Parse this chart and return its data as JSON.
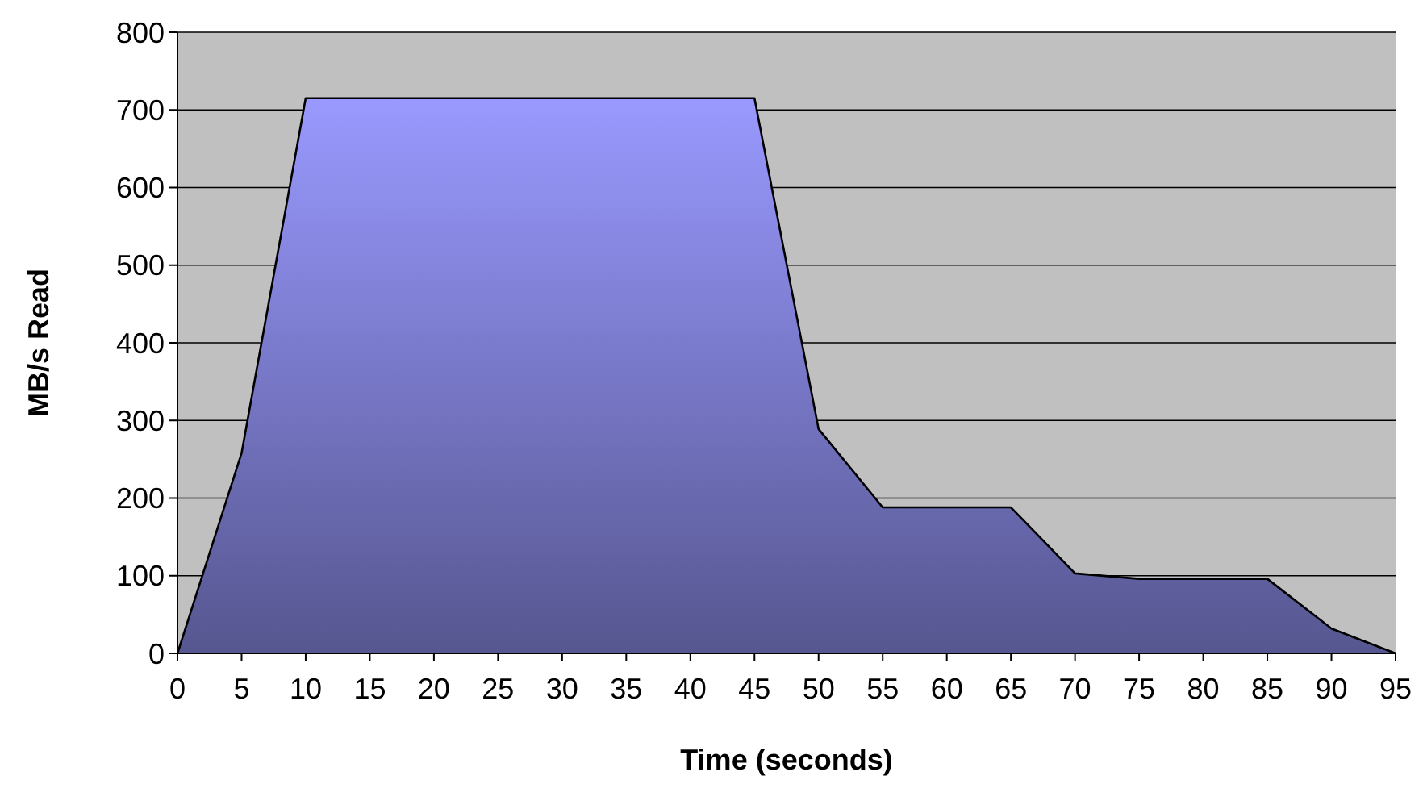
{
  "chart_data": {
    "type": "area",
    "xlabel": "Time (seconds)",
    "ylabel": "MB/s Read",
    "x": [
      0,
      5,
      10,
      15,
      20,
      25,
      30,
      35,
      40,
      45,
      50,
      55,
      60,
      65,
      70,
      75,
      80,
      85,
      90,
      95
    ],
    "values": [
      0,
      258,
      715,
      715,
      715,
      715,
      715,
      715,
      715,
      715,
      289,
      188,
      188,
      188,
      103,
      96,
      96,
      96,
      32,
      0
    ],
    "color": "#9999ff",
    "xlim": [
      0,
      95
    ],
    "xticks": [
      0,
      5,
      10,
      15,
      20,
      25,
      30,
      35,
      40,
      45,
      50,
      55,
      60,
      65,
      70,
      75,
      80,
      85,
      90,
      95
    ],
    "ylim": [
      0,
      800
    ],
    "yticks": [
      0,
      100,
      200,
      300,
      400,
      500,
      600,
      700,
      800
    ],
    "grid": "y"
  }
}
